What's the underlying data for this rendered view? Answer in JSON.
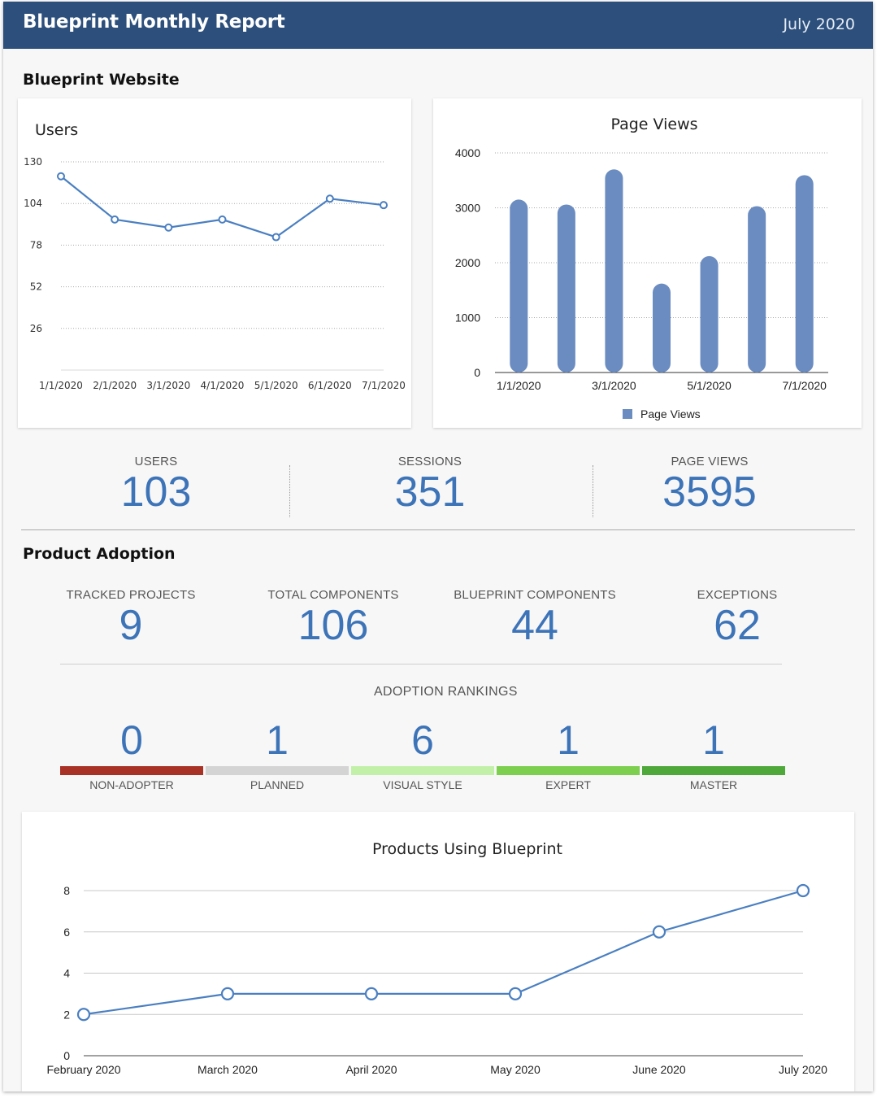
{
  "header": {
    "title": "Blueprint Monthly Report",
    "date": "July 2020"
  },
  "website": {
    "section_title": "Blueprint Website",
    "stats": [
      {
        "label": "USERS",
        "value": "103"
      },
      {
        "label": "SESSIONS",
        "value": "351"
      },
      {
        "label": "PAGE VIEWS",
        "value": "3595"
      }
    ]
  },
  "adoption": {
    "section_title": "Product Adoption",
    "stats": [
      {
        "label": "TRACKED PROJECTS",
        "value": "9"
      },
      {
        "label": "TOTAL COMPONENTS",
        "value": "106"
      },
      {
        "label": "BLUEPRINT COMPONENTS",
        "value": "44"
      },
      {
        "label": "EXCEPTIONS",
        "value": "62"
      }
    ],
    "rankings_title": "ADOPTION RANKINGS",
    "rankings": [
      {
        "label": "NON-ADOPTER",
        "value": "0",
        "color": "#a93226"
      },
      {
        "label": "PLANNED",
        "value": "1",
        "color": "#d4d4d4"
      },
      {
        "label": "VISUAL STYLE",
        "value": "6",
        "color": "#c3f0a8"
      },
      {
        "label": "EXPERT",
        "value": "1",
        "color": "#7ccf4f"
      },
      {
        "label": "MASTER",
        "value": "1",
        "color": "#4ea83a"
      }
    ]
  },
  "colors": {
    "header_bg": "#2c4f7c",
    "accent": "#3d74b8",
    "bar": "#6b8cc0",
    "line": "#4a7fc1"
  },
  "chart_data": [
    {
      "type": "line",
      "title": "Users",
      "x": [
        "1/1/2020",
        "2/1/2020",
        "3/1/2020",
        "4/1/2020",
        "5/1/2020",
        "6/1/2020",
        "7/1/2020"
      ],
      "values": [
        121,
        94,
        89,
        94,
        83,
        107,
        103
      ],
      "yticks": [
        26,
        52,
        78,
        104,
        130
      ],
      "ylim": [
        0,
        130
      ]
    },
    {
      "type": "bar",
      "title": "Page Views",
      "categories": [
        "1/1/2020",
        "2/1/2020",
        "3/1/2020",
        "4/1/2020",
        "5/1/2020",
        "6/1/2020",
        "7/1/2020"
      ],
      "xtick_labels": [
        "1/1/2020",
        "3/1/2020",
        "5/1/2020",
        "7/1/2020"
      ],
      "series": [
        {
          "name": "Page Views",
          "values": [
            3150,
            3060,
            3700,
            1620,
            2120,
            3030,
            3595
          ]
        }
      ],
      "yticks": [
        0,
        1000,
        2000,
        3000,
        4000
      ],
      "ylim": [
        0,
        4000
      ],
      "legend": "bottom"
    },
    {
      "type": "line",
      "title": "Products Using Blueprint",
      "x": [
        "February 2020",
        "March 2020",
        "April 2020",
        "May 2020",
        "June 2020",
        "July 2020"
      ],
      "values": [
        2,
        3,
        3,
        3,
        6,
        8
      ],
      "yticks": [
        0,
        2,
        4,
        6,
        8
      ],
      "ylim": [
        0,
        8
      ]
    }
  ]
}
